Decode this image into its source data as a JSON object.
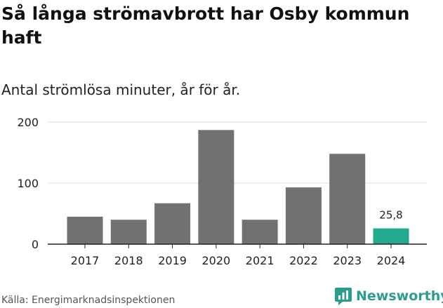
{
  "title": "Så långa strömavbrott har Osby kommun haft",
  "subtitle": "Antal strömlösa minuter, år för år.",
  "source": "Källa: Energimarknadsinspektionen",
  "brand": "Newsworthy",
  "colors": {
    "bar": "#717073",
    "highlight": "#24a88e",
    "grid": "#dddddd",
    "axis": "#222222",
    "brand": "#2a9d8f"
  },
  "chart_data": {
    "type": "bar",
    "categories": [
      "2017",
      "2018",
      "2019",
      "2020",
      "2021",
      "2022",
      "2023",
      "2024"
    ],
    "values": [
      45,
      40,
      67,
      187,
      40,
      93,
      148,
      25.8
    ],
    "highlight_index": 7,
    "data_labels": {
      "7": "25,8"
    },
    "yticks": [
      0,
      100,
      200
    ],
    "ylim": [
      0,
      200
    ],
    "title": "Så långa strömavbrott har Osby kommun haft",
    "xlabel": "",
    "ylabel": "",
    "grid": true
  }
}
